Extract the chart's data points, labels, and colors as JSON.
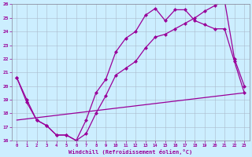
{
  "xlabel": "Windchill (Refroidissement éolien,°C)",
  "xlim": [
    -0.5,
    23.5
  ],
  "ylim": [
    16,
    26
  ],
  "yticks": [
    16,
    17,
    18,
    19,
    20,
    21,
    22,
    23,
    24,
    25,
    26
  ],
  "xticks": [
    0,
    1,
    2,
    3,
    4,
    5,
    6,
    7,
    8,
    9,
    10,
    11,
    12,
    13,
    14,
    15,
    16,
    17,
    18,
    19,
    20,
    21,
    22,
    23
  ],
  "line_color": "#990099",
  "bg_color": "#cceeff",
  "grid_color": "#aabbcc",
  "line1_x": [
    0,
    1,
    2,
    3,
    4,
    5,
    6,
    7,
    8,
    9,
    10,
    11,
    12,
    13,
    14,
    15,
    16,
    17,
    18,
    19,
    20,
    21,
    22,
    23
  ],
  "line1_y": [
    20.6,
    18.8,
    17.5,
    17.1,
    16.4,
    16.4,
    16.0,
    17.5,
    19.5,
    20.5,
    22.5,
    23.5,
    24.0,
    25.2,
    25.7,
    24.8,
    25.6,
    25.6,
    24.8,
    24.5,
    24.2,
    24.2,
    21.8,
    19.5
  ],
  "line2_x": [
    0,
    1,
    2,
    3,
    4,
    5,
    6,
    7,
    8,
    9,
    10,
    11,
    12,
    13,
    14,
    15,
    16,
    17,
    18,
    19,
    20,
    21,
    22,
    23
  ],
  "line2_y": [
    20.6,
    19.0,
    17.5,
    17.1,
    16.4,
    16.4,
    16.0,
    16.5,
    18.0,
    19.3,
    20.8,
    21.3,
    21.8,
    22.8,
    23.6,
    23.8,
    24.2,
    24.6,
    25.0,
    25.5,
    25.9,
    26.3,
    22.0,
    20.0
  ],
  "line3_x": [
    0,
    23
  ],
  "line3_y": [
    17.5,
    19.5
  ]
}
